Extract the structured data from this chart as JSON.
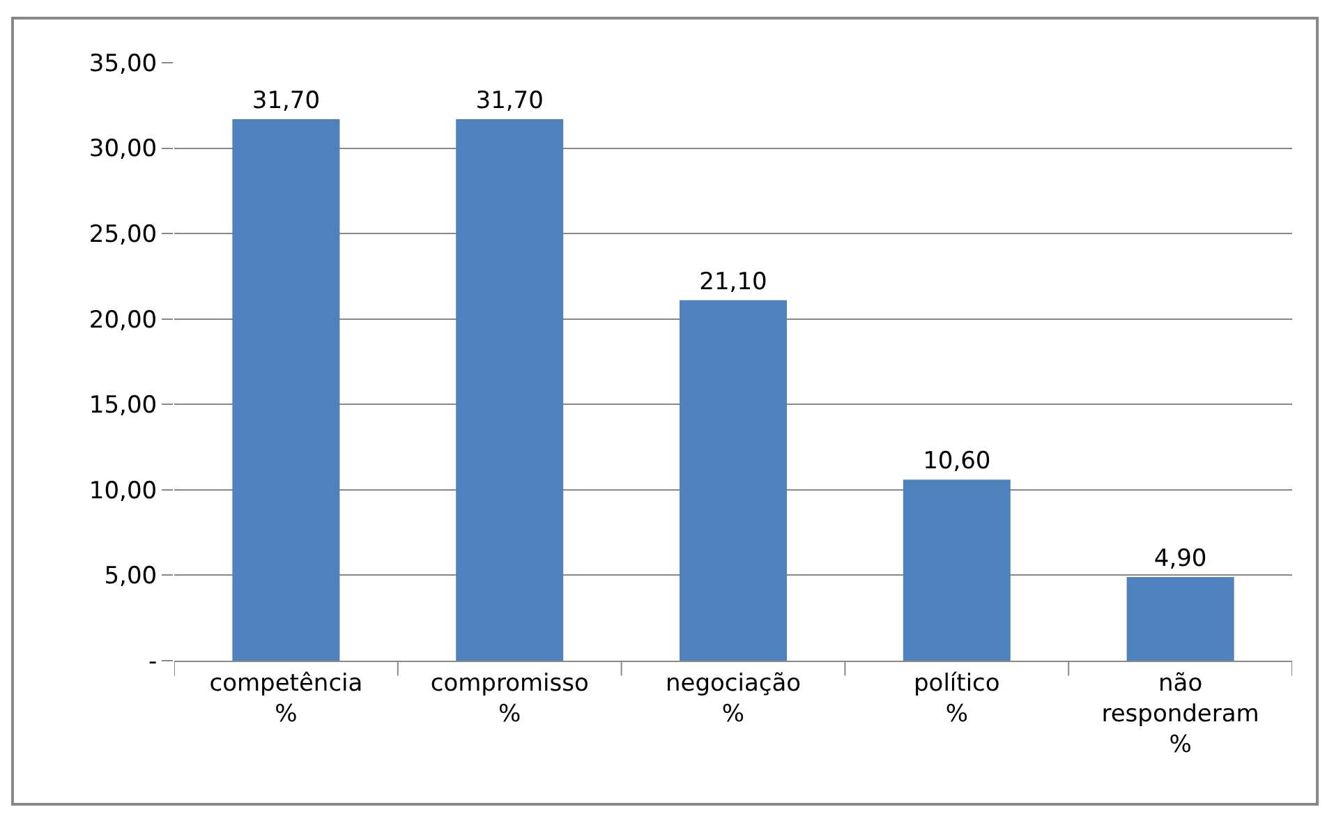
{
  "chart_data": {
    "type": "bar",
    "categories": [
      "competência %",
      "compromisso %",
      "negociação %",
      "político %",
      "não responderam %"
    ],
    "values": [
      31.7,
      31.7,
      21.1,
      10.6,
      4.9
    ],
    "value_labels": [
      "31,70",
      "31,70",
      "21,10",
      "10,60",
      "4,90"
    ],
    "color": "#4f81bd",
    "ylim": [
      0,
      35
    ],
    "yticks": [
      {
        "value": 0,
        "label": "-"
      },
      {
        "value": 5,
        "label": "5,00"
      },
      {
        "value": 10,
        "label": "10,00"
      },
      {
        "value": 15,
        "label": "15,00"
      },
      {
        "value": 20,
        "label": "20,00"
      },
      {
        "value": 25,
        "label": "25,00"
      },
      {
        "value": 30,
        "label": "30,00"
      },
      {
        "value": 35,
        "label": "35,00"
      }
    ],
    "grid": "y",
    "legend": false
  }
}
